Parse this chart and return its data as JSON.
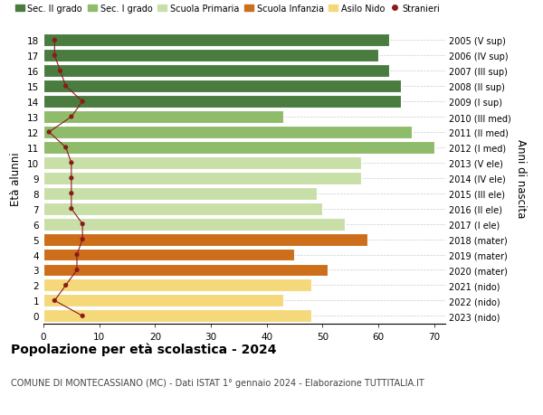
{
  "ages": [
    18,
    17,
    16,
    15,
    14,
    13,
    12,
    11,
    10,
    9,
    8,
    7,
    6,
    5,
    4,
    3,
    2,
    1,
    0
  ],
  "bar_values": [
    62,
    60,
    62,
    64,
    64,
    43,
    66,
    70,
    57,
    57,
    49,
    50,
    54,
    58,
    45,
    51,
    48,
    43,
    48
  ],
  "bar_colors": [
    "#4a7c3f",
    "#4a7c3f",
    "#4a7c3f",
    "#4a7c3f",
    "#4a7c3f",
    "#8fbc6a",
    "#8fbc6a",
    "#8fbc6a",
    "#c8dfa8",
    "#c8dfa8",
    "#c8dfa8",
    "#c8dfa8",
    "#c8dfa8",
    "#cc6e1a",
    "#cc6e1a",
    "#cc6e1a",
    "#f5d87a",
    "#f5d87a",
    "#f5d87a"
  ],
  "stranieri": [
    2,
    2,
    3,
    4,
    7,
    5,
    1,
    4,
    5,
    5,
    5,
    5,
    7,
    7,
    6,
    6,
    4,
    2,
    7
  ],
  "right_labels": [
    "2005 (V sup)",
    "2006 (IV sup)",
    "2007 (III sup)",
    "2008 (II sup)",
    "2009 (I sup)",
    "2010 (III med)",
    "2011 (II med)",
    "2012 (I med)",
    "2013 (V ele)",
    "2014 (IV ele)",
    "2015 (III ele)",
    "2016 (II ele)",
    "2017 (I ele)",
    "2018 (mater)",
    "2019 (mater)",
    "2020 (mater)",
    "2021 (nido)",
    "2022 (nido)",
    "2023 (nido)"
  ],
  "legend_labels": [
    "Sec. II grado",
    "Sec. I grado",
    "Scuola Primaria",
    "Scuola Infanzia",
    "Asilo Nido",
    "Stranieri"
  ],
  "legend_colors": [
    "#4a7c3f",
    "#8fbc6a",
    "#c8dfa8",
    "#cc6e1a",
    "#f5d87a",
    "#8b1a1a"
  ],
  "ylabel": "Età alunni",
  "right_ylabel": "Anni di nascita",
  "title": "Popolazione per età scolastica - 2024",
  "subtitle": "COMUNE DI MONTECASSIANO (MC) - Dati ISTAT 1° gennaio 2024 - Elaborazione TUTTITALIA.IT",
  "xlim": [
    0,
    72
  ],
  "xticks": [
    0,
    10,
    20,
    30,
    40,
    50,
    60,
    70
  ],
  "background_color": "#ffffff",
  "grid_color": "#cccccc",
  "stranieri_color": "#8b1a1a"
}
